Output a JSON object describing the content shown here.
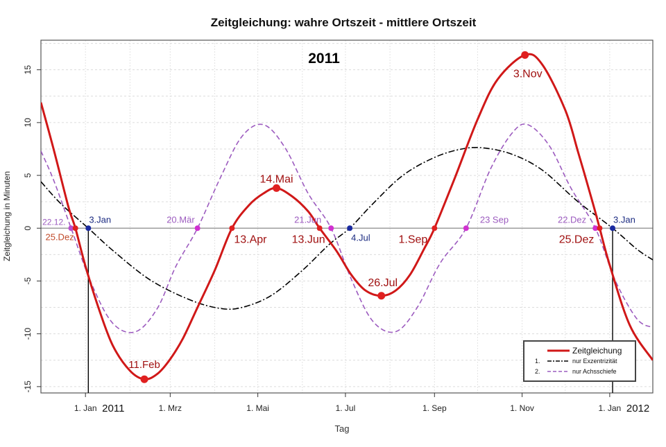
{
  "chart_data": {
    "type": "line",
    "title": "Zeitgleichung: wahre Ortszeit - mittlere Ortszeit",
    "year_label": "2011",
    "xlabel": "Tag",
    "ylabel": "Zeitgleichung in Minuten",
    "xlim": [
      "2010-12-01",
      "2012-01-31"
    ],
    "ylim": [
      -15.6,
      17.8
    ],
    "y_ticks": [
      15,
      10,
      5,
      0,
      -5,
      -10,
      -15
    ],
    "y_tick_labels": [
      "15",
      "10",
      "5",
      "0",
      "-5",
      "-10",
      "-15"
    ],
    "x_ticks": [
      {
        "date": "2011-01-01",
        "label": "1. Jan"
      },
      {
        "date": "2011-03-01",
        "label": "1. Mrz"
      },
      {
        "date": "2011-05-01",
        "label": "1. Mai"
      },
      {
        "date": "2011-07-01",
        "label": "1. Jul"
      },
      {
        "date": "2011-09-01",
        "label": "1. Sep"
      },
      {
        "date": "2011-11-01",
        "label": "1. Nov"
      },
      {
        "date": "2012-01-01",
        "label": "1. Jan"
      }
    ],
    "year_tick_labels": [
      {
        "date": "2011-01-01",
        "label": "2011"
      },
      {
        "date": "2012-01-01",
        "label": "2012"
      }
    ],
    "grid": true,
    "legend_position": "bottom-right",
    "series": [
      {
        "name": "Zeitgleichung",
        "legend_number": "",
        "color": "#d01818",
        "style": "solid",
        "points": [
          {
            "x": "2010-12-01",
            "y": 11.9
          },
          {
            "x": "2010-12-10",
            "y": 7.4
          },
          {
            "x": "2010-12-20",
            "y": 2.1
          },
          {
            "x": "2010-12-25",
            "y": 0.0
          },
          {
            "x": "2011-01-01",
            "y": -3.6
          },
          {
            "x": "2011-01-10",
            "y": -7.5
          },
          {
            "x": "2011-01-20",
            "y": -11.1
          },
          {
            "x": "2011-02-01",
            "y": -13.5
          },
          {
            "x": "2011-02-11",
            "y": -14.3
          },
          {
            "x": "2011-02-20",
            "y": -13.8
          },
          {
            "x": "2011-03-01",
            "y": -12.4
          },
          {
            "x": "2011-03-10",
            "y": -10.4
          },
          {
            "x": "2011-03-20",
            "y": -7.5
          },
          {
            "x": "2011-04-01",
            "y": -4.0
          },
          {
            "x": "2011-04-13",
            "y": 0.0
          },
          {
            "x": "2011-04-25",
            "y": 2.2
          },
          {
            "x": "2011-05-05",
            "y": 3.3
          },
          {
            "x": "2011-05-14",
            "y": 3.8
          },
          {
            "x": "2011-05-25",
            "y": 3.0
          },
          {
            "x": "2011-06-05",
            "y": 1.6
          },
          {
            "x": "2011-06-13",
            "y": 0.0
          },
          {
            "x": "2011-06-25",
            "y": -2.2
          },
          {
            "x": "2011-07-05",
            "y": -4.4
          },
          {
            "x": "2011-07-15",
            "y": -5.9
          },
          {
            "x": "2011-07-26",
            "y": -6.4
          },
          {
            "x": "2011-08-05",
            "y": -5.9
          },
          {
            "x": "2011-08-15",
            "y": -4.4
          },
          {
            "x": "2011-08-25",
            "y": -1.9
          },
          {
            "x": "2011-09-01",
            "y": 0.0
          },
          {
            "x": "2011-09-15",
            "y": 4.7
          },
          {
            "x": "2011-10-01",
            "y": 10.3
          },
          {
            "x": "2011-10-15",
            "y": 14.1
          },
          {
            "x": "2011-11-03",
            "y": 16.4
          },
          {
            "x": "2011-11-15",
            "y": 15.5
          },
          {
            "x": "2011-12-01",
            "y": 11.2
          },
          {
            "x": "2011-12-10",
            "y": 7.2
          },
          {
            "x": "2011-12-20",
            "y": 2.5
          },
          {
            "x": "2011-12-25",
            "y": 0.0
          },
          {
            "x": "2012-01-01",
            "y": -3.5
          },
          {
            "x": "2012-01-15",
            "y": -9.2
          },
          {
            "x": "2012-01-31",
            "y": -12.5
          }
        ]
      },
      {
        "name": "nur Exzentrizität",
        "legend_number": "1.",
        "color": "#000000",
        "style": "dashdot",
        "points": [
          {
            "x": "2010-12-01",
            "y": 4.4
          },
          {
            "x": "2010-12-15",
            "y": 2.3
          },
          {
            "x": "2011-01-03",
            "y": 0.0
          },
          {
            "x": "2011-01-20",
            "y": -2.1
          },
          {
            "x": "2011-02-15",
            "y": -4.9
          },
          {
            "x": "2011-03-15",
            "y": -6.8
          },
          {
            "x": "2011-04-05",
            "y": -7.6
          },
          {
            "x": "2011-04-20",
            "y": -7.5
          },
          {
            "x": "2011-05-10",
            "y": -6.4
          },
          {
            "x": "2011-06-01",
            "y": -4.0
          },
          {
            "x": "2011-06-20",
            "y": -1.5
          },
          {
            "x": "2011-07-04",
            "y": 0.0
          },
          {
            "x": "2011-07-20",
            "y": 2.3
          },
          {
            "x": "2011-08-10",
            "y": 5.0
          },
          {
            "x": "2011-09-01",
            "y": 6.7
          },
          {
            "x": "2011-09-20",
            "y": 7.5
          },
          {
            "x": "2011-10-05",
            "y": 7.6
          },
          {
            "x": "2011-10-25",
            "y": 7.0
          },
          {
            "x": "2011-11-15",
            "y": 5.5
          },
          {
            "x": "2011-12-10",
            "y": 2.5
          },
          {
            "x": "2012-01-03",
            "y": 0.0
          },
          {
            "x": "2012-01-20",
            "y": -2.0
          },
          {
            "x": "2012-01-31",
            "y": -3.0
          }
        ]
      },
      {
        "name": "nur Achsschiefe",
        "legend_number": "2.",
        "color": "#9c5bbf",
        "style": "dashed",
        "points": [
          {
            "x": "2010-12-01",
            "y": 7.3
          },
          {
            "x": "2010-12-10",
            "y": 4.5
          },
          {
            "x": "2010-12-22",
            "y": 0.0
          },
          {
            "x": "2011-01-05",
            "y": -5.2
          },
          {
            "x": "2011-01-20",
            "y": -9.0
          },
          {
            "x": "2011-02-05",
            "y": -9.8
          },
          {
            "x": "2011-02-20",
            "y": -7.6
          },
          {
            "x": "2011-03-05",
            "y": -3.6
          },
          {
            "x": "2011-03-20",
            "y": 0.0
          },
          {
            "x": "2011-04-05",
            "y": 4.8
          },
          {
            "x": "2011-04-20",
            "y": 8.7
          },
          {
            "x": "2011-05-05",
            "y": 9.8
          },
          {
            "x": "2011-05-20",
            "y": 7.6
          },
          {
            "x": "2011-06-05",
            "y": 3.3
          },
          {
            "x": "2011-06-21",
            "y": 0.0
          },
          {
            "x": "2011-07-05",
            "y": -4.8
          },
          {
            "x": "2011-07-20",
            "y": -8.8
          },
          {
            "x": "2011-08-05",
            "y": -9.8
          },
          {
            "x": "2011-08-20",
            "y": -7.5
          },
          {
            "x": "2011-09-05",
            "y": -3.3
          },
          {
            "x": "2011-09-23",
            "y": 0.0
          },
          {
            "x": "2011-10-10",
            "y": 5.6
          },
          {
            "x": "2011-10-25",
            "y": 9.0
          },
          {
            "x": "2011-11-05",
            "y": 9.8
          },
          {
            "x": "2011-11-20",
            "y": 7.8
          },
          {
            "x": "2011-12-05",
            "y": 3.8
          },
          {
            "x": "2011-12-22",
            "y": 0.0
          },
          {
            "x": "2012-01-05",
            "y": -5.0
          },
          {
            "x": "2012-01-20",
            "y": -8.6
          },
          {
            "x": "2012-01-31",
            "y": -9.4
          }
        ]
      }
    ],
    "markers": [
      {
        "x": "2010-12-22",
        "y": 0,
        "color": "#b84fd0",
        "size": "small"
      },
      {
        "x": "2010-12-25",
        "y": 0,
        "color": "#e02020",
        "size": "small"
      },
      {
        "x": "2011-01-03",
        "y": 0,
        "color": "#1a2aa0",
        "size": "small"
      },
      {
        "x": "2011-02-11",
        "y": -14.3,
        "color": "#e02020",
        "size": "large"
      },
      {
        "x": "2011-03-20",
        "y": 0,
        "color": "#d030d0",
        "size": "small"
      },
      {
        "x": "2011-04-13",
        "y": 0,
        "color": "#e02020",
        "size": "small"
      },
      {
        "x": "2011-05-14",
        "y": 3.8,
        "color": "#e02020",
        "size": "large"
      },
      {
        "x": "2011-06-13",
        "y": 0,
        "color": "#e02020",
        "size": "small"
      },
      {
        "x": "2011-06-21",
        "y": 0,
        "color": "#d030d0",
        "size": "small"
      },
      {
        "x": "2011-07-04",
        "y": 0,
        "color": "#1a2aa0",
        "size": "small"
      },
      {
        "x": "2011-07-26",
        "y": -6.4,
        "color": "#e02020",
        "size": "large"
      },
      {
        "x": "2011-09-01",
        "y": 0,
        "color": "#e02020",
        "size": "small"
      },
      {
        "x": "2011-09-23",
        "y": 0,
        "color": "#d030d0",
        "size": "small"
      },
      {
        "x": "2011-11-03",
        "y": 16.4,
        "color": "#e02020",
        "size": "large"
      },
      {
        "x": "2011-12-22",
        "y": 0,
        "color": "#d030d0",
        "size": "small"
      },
      {
        "x": "2011-12-25",
        "y": 0,
        "color": "#e02020",
        "size": "small"
      },
      {
        "x": "2012-01-03",
        "y": 0,
        "color": "#1a2aa0",
        "size": "small"
      }
    ],
    "annotations": [
      {
        "text": "22.12.",
        "x": "2010-12-22",
        "y": 0,
        "color": "#9c5bbf",
        "anchor": "end",
        "dx": -8,
        "dy": -5,
        "size": 12,
        "weight": "normal"
      },
      {
        "text": "25.Dez",
        "x": "2010-12-25",
        "y": 0,
        "color": "#c04a2a",
        "anchor": "end",
        "dx": -2,
        "dy": 17,
        "size": 13,
        "weight": "normal"
      },
      {
        "text": "3.Jan",
        "x": "2011-01-03",
        "y": 0,
        "color": "#1a2a80",
        "anchor": "start",
        "dx": 1,
        "dy": -8,
        "size": 13,
        "weight": "normal"
      },
      {
        "text": "11.Feb",
        "x": "2011-02-11",
        "y": -14.3,
        "color": "#a01010",
        "anchor": "middle",
        "dx": 0,
        "dy": -16,
        "size": 15,
        "weight": "normal"
      },
      {
        "text": "20.Mär",
        "x": "2011-03-20",
        "y": 0,
        "color": "#9c5bbf",
        "anchor": "end",
        "dx": -4,
        "dy": -8,
        "size": 13,
        "weight": "normal"
      },
      {
        "text": "13.Apr",
        "x": "2011-04-13",
        "y": 0,
        "color": "#a01010",
        "anchor": "start",
        "dx": 3,
        "dy": 21,
        "size": 16,
        "weight": "normal"
      },
      {
        "text": "14.Mai",
        "x": "2011-05-14",
        "y": 3.8,
        "color": "#a01010",
        "anchor": "middle",
        "dx": 0,
        "dy": -8,
        "size": 16,
        "weight": "normal"
      },
      {
        "text": "21.Jun",
        "x": "2011-06-21",
        "y": 0,
        "color": "#9c5bbf",
        "anchor": "end",
        "dx": -14,
        "dy": -8,
        "size": 13,
        "weight": "normal"
      },
      {
        "text": "13.Jun",
        "x": "2011-06-13",
        "y": 0,
        "color": "#a01010",
        "anchor": "end",
        "dx": 8,
        "dy": 21,
        "size": 16,
        "weight": "normal"
      },
      {
        "text": "4.Jul",
        "x": "2011-07-04",
        "y": 0,
        "color": "#1a2a80",
        "anchor": "start",
        "dx": 2,
        "dy": 18,
        "size": 13,
        "weight": "normal"
      },
      {
        "text": "26.Jul",
        "x": "2011-07-26",
        "y": -6.4,
        "color": "#a01010",
        "anchor": "middle",
        "dx": 2,
        "dy": -14,
        "size": 16,
        "weight": "normal"
      },
      {
        "text": "1.Sep",
        "x": "2011-09-01",
        "y": 0,
        "color": "#a01010",
        "anchor": "end",
        "dx": -10,
        "dy": 21,
        "size": 16,
        "weight": "normal"
      },
      {
        "text": "23 Sep",
        "x": "2011-09-23",
        "y": 0,
        "color": "#9c5bbf",
        "anchor": "start",
        "dx": 20,
        "dy": -8,
        "size": 13,
        "weight": "normal"
      },
      {
        "text": "3.Nov",
        "x": "2011-11-03",
        "y": 16.4,
        "color": "#a01010",
        "anchor": "middle",
        "dx": 4,
        "dy": 32,
        "size": 16,
        "weight": "normal"
      },
      {
        "text": "22.Dez",
        "x": "2011-12-22",
        "y": 0,
        "color": "#9c5bbf",
        "anchor": "end",
        "dx": -13,
        "dy": -8,
        "size": 13,
        "weight": "normal"
      },
      {
        "text": "25.Dez",
        "x": "2011-12-25",
        "y": 0,
        "color": "#a01010",
        "anchor": "end",
        "dx": -8,
        "dy": 21,
        "size": 16,
        "weight": "normal"
      },
      {
        "text": "3.Jan",
        "x": "2012-01-03",
        "y": 0,
        "color": "#1a2a80",
        "anchor": "start",
        "dx": 1,
        "dy": -8,
        "size": 13,
        "weight": "normal"
      }
    ],
    "vertical_markers": [
      {
        "x": "2011-01-03",
        "y_from": 0,
        "y_to": -15.6
      },
      {
        "x": "2012-01-03",
        "y_from": 0,
        "y_to": -15.6
      }
    ]
  }
}
